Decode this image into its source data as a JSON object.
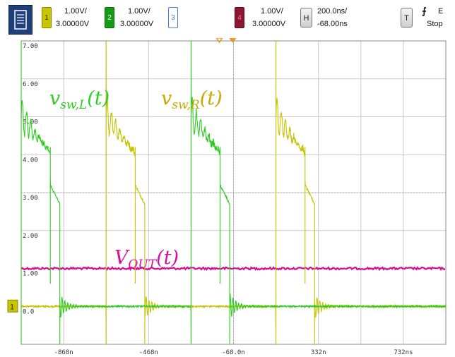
{
  "toolbar": {
    "menu_icon": "menu-list-icon",
    "channels": [
      {
        "number": "1",
        "scale": "1.00V/",
        "offset": "3.00000V",
        "color": "#c8c400"
      },
      {
        "number": "2",
        "scale": "1.00V/",
        "offset": "3.00000V",
        "color": "#149a14"
      },
      {
        "number": "3",
        "color": "#4a7bd0"
      },
      {
        "number": "4",
        "scale": "1.00V/",
        "offset": "3.00000V",
        "color": "#8c1733"
      }
    ],
    "horizontal": {
      "button": "H",
      "scale": "200.0ns/",
      "delay": "-68.00ns"
    },
    "trigger": {
      "button": "T",
      "edge_icon": "falling-edge-icon",
      "edge_glyph": "⨍",
      "source": "E",
      "status": "Stop"
    }
  },
  "screen": {
    "background": "#ffffff",
    "grid_color": "#c9c9c9",
    "y_tick_labels": [
      "7.00",
      "6.00",
      "5.00",
      "4.00",
      "3.00",
      "2.00",
      "1.00",
      "0.0"
    ],
    "x_tick_labels": [
      "-868n",
      "-468n",
      "-68.0n",
      "332n",
      "732ns"
    ],
    "ground_marker": "1",
    "trace_labels": {
      "vsw_L": {
        "text": "v",
        "sub": "sw,L",
        "arg": "(t)",
        "color": "#2ecc20"
      },
      "vsw_R": {
        "text": "v",
        "sub": "sw,R",
        "arg": "(t)",
        "color": "#c8a800"
      },
      "vout": {
        "text": "V",
        "sub": "OUT",
        "arg": "(t)",
        "color": "#d6109a"
      }
    }
  },
  "chart_data": {
    "type": "line",
    "title": "",
    "x_unit": "ns",
    "y_unit": "V",
    "xlim": [
      -968,
      1032
    ],
    "ylim": [
      -1.0,
      7.0
    ],
    "grid": true,
    "series": [
      {
        "name": "vsw,L(t)",
        "color": "#2ecc20",
        "pulses": [
          {
            "rise_ns": -968,
            "peak_V": 5.0,
            "ring_end_V": 4.3,
            "step_ns": -831,
            "step_to_V": 3.2,
            "fall_ns": -786,
            "fall_from_V": 2.7
          },
          {
            "rise_ns": -168,
            "peak_V": 5.0,
            "ring_end_V": 4.3,
            "step_ns": -31,
            "step_to_V": 3.2,
            "fall_ns": 14,
            "fall_from_V": 2.7
          }
        ],
        "low_V": 0.0
      },
      {
        "name": "vsw,R(t)",
        "color": "#c8c400",
        "pulses": [
          {
            "rise_ns": -568,
            "peak_V": 5.0,
            "ring_end_V": 4.3,
            "step_ns": -431,
            "step_to_V": 3.2,
            "fall_ns": -386,
            "fall_from_V": 2.7
          },
          {
            "rise_ns": 232,
            "peak_V": 5.0,
            "ring_end_V": 4.3,
            "step_ns": 369,
            "step_to_V": 3.2,
            "fall_ns": 414,
            "fall_from_V": 2.7
          }
        ],
        "low_V": 0.0
      },
      {
        "name": "VOUT(t)",
        "color": "#d6109a",
        "level_V": 1.0
      }
    ]
  }
}
